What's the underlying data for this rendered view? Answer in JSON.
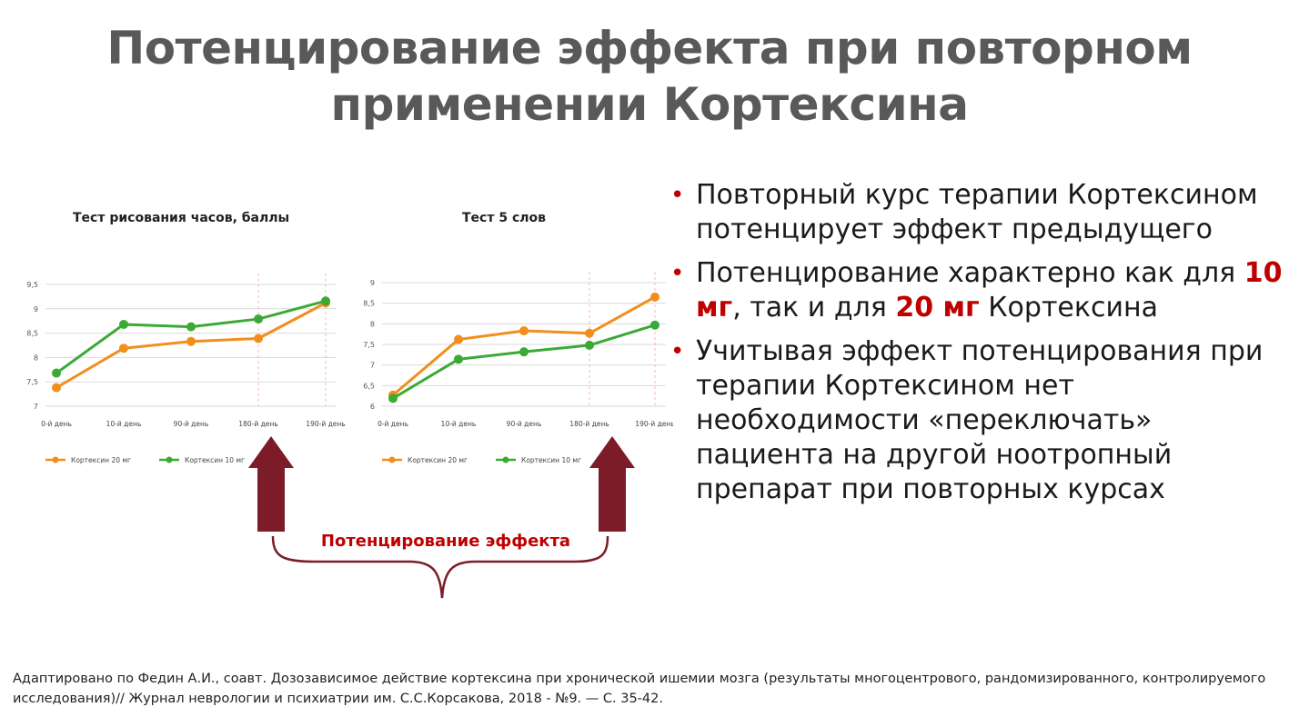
{
  "slide": {
    "title_line1": "Потенцирование эффекта при повторном",
    "title_line2": "применении Кортексина"
  },
  "chart_data": [
    {
      "type": "line",
      "title": "Тест рисования часов, баллы",
      "categories": [
        "0-й день",
        "10-й день",
        "90-й день",
        "180-й день",
        "190-й день"
      ],
      "ylim": [
        7,
        9.5
      ],
      "yticks": [
        "7",
        "7,5",
        "8",
        "8,5",
        "9",
        "9,5"
      ],
      "ytick_values": [
        7,
        7.5,
        8,
        8.5,
        9,
        9.5
      ],
      "grid": true,
      "legend_position": "bottom-left",
      "series": [
        {
          "name": "Кортексин 20 мг",
          "color": "#f28e1c",
          "values": [
            7.38,
            8.19,
            8.33,
            8.39,
            9.12
          ]
        },
        {
          "name": "Кортексин 10 мг",
          "color": "#3aaa35",
          "values": [
            7.68,
            8.68,
            8.63,
            8.79,
            9.16
          ]
        }
      ]
    },
    {
      "type": "line",
      "title": "Тест 5 слов",
      "categories": [
        "0-й день",
        "10-й день",
        "90-й день",
        "180-й день",
        "190-й день"
      ],
      "ylim": [
        6,
        9
      ],
      "yticks": [
        "6",
        "6,5",
        "7",
        "7,5",
        "8",
        "8,5",
        "9"
      ],
      "ytick_values": [
        6,
        6.5,
        7,
        7.5,
        8,
        8.5,
        9
      ],
      "grid": true,
      "legend_position": "bottom-left",
      "series": [
        {
          "name": "Кортексин 20 мг",
          "color": "#f28e1c",
          "values": [
            6.27,
            7.62,
            7.83,
            7.77,
            8.65
          ]
        },
        {
          "name": "Кортексин 10 мг",
          "color": "#3aaa35",
          "values": [
            6.19,
            7.14,
            7.32,
            7.48,
            7.97
          ]
        }
      ]
    }
  ],
  "annotation": {
    "brace_label": "Потенцирование эффекта",
    "arrow_color": "#7b1c28"
  },
  "bullets": {
    "b1": "Повторный курс терапии Кортексином потенцирует эффект предыдущего",
    "b2_pre": "Потенцирование характерно как для ",
    "b2_hl1": "10 мг",
    "b2_mid": ", так и для ",
    "b2_hl2": "20 мг",
    "b2_post": " Кортексина",
    "b3": "Учитывая эффект потенцирования при терапии Кортексином нет необходимости «переключать» пациента на другой ноотропный препарат при повторных курсах"
  },
  "footnote": {
    "text": "Адаптировано по Федин А.И., соавт. Дозозависимое действие кортексина при хронической ишемии мозга (результаты многоцентрового, рандомизированного, контролируемого исследования)// Журнал неврологии и психиатрии им. С.С.Корсакова, 2018 - №9. — С. 35-42."
  }
}
